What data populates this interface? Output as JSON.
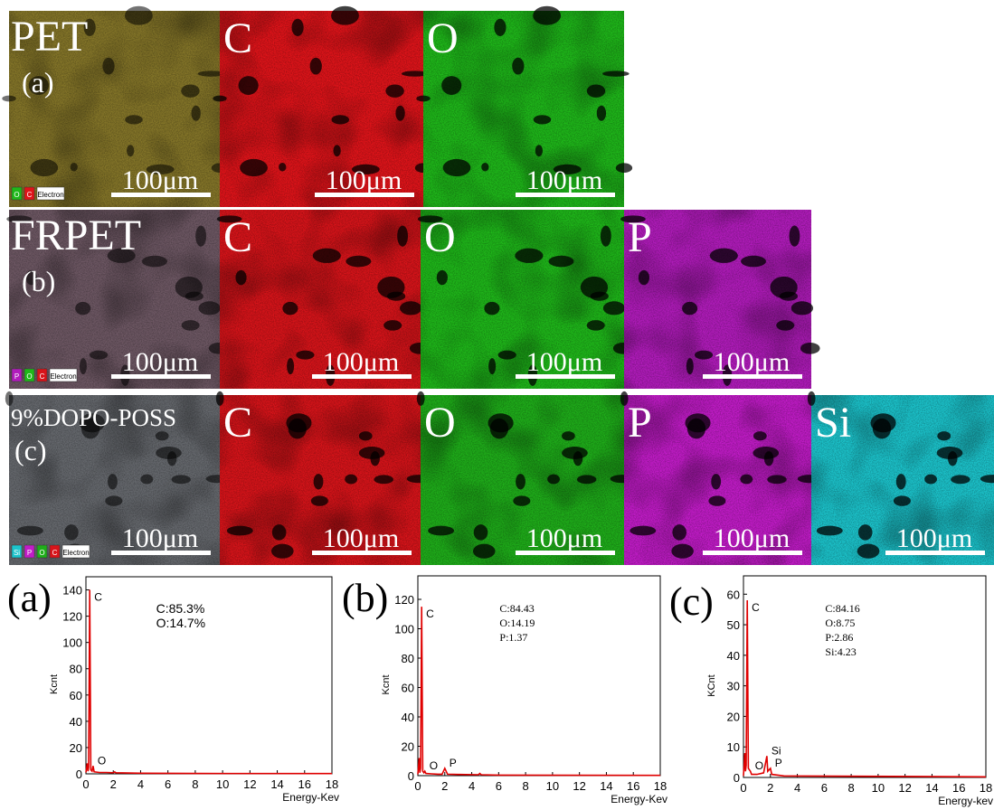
{
  "figure": {
    "rows": [
      {
        "sample": "PET",
        "label": "(a)",
        "color": "#857629",
        "scale_bar": "100μm",
        "legend": [
          "O",
          "C",
          "Electron"
        ],
        "panels": [
          {
            "element": "C",
            "color": "#e0141a"
          },
          {
            "element": "O",
            "color": "#1fb81a"
          }
        ]
      },
      {
        "sample": "FRPET",
        "label": "(b)",
        "color": "#6e5864",
        "scale_bar": "100μm",
        "legend": [
          "P",
          "O",
          "C",
          "Electron"
        ],
        "panels": [
          {
            "element": "C",
            "color": "#d8141a"
          },
          {
            "element": "O",
            "color": "#1fb81a"
          },
          {
            "element": "P",
            "color": "#b21cbc"
          }
        ]
      },
      {
        "sample": "9%DOPO-POSS",
        "label": "(c)",
        "color": "#66696e",
        "scale_bar": "100μm",
        "legend": [
          "Si",
          "P",
          "O",
          "C",
          "Electron"
        ],
        "panels": [
          {
            "element": "C",
            "color": "#d8141a"
          },
          {
            "element": "O",
            "color": "#1fae1a"
          },
          {
            "element": "P",
            "color": "#c21cc8"
          },
          {
            "element": "Si",
            "color": "#1cc4cc"
          }
        ]
      }
    ]
  },
  "chart_data": [
    {
      "type": "line",
      "panel_label": "(a)",
      "ylabel": "Kcnt",
      "xlabel": "Energy-Kev",
      "color": "#e00000",
      "x": [
        0,
        0.1,
        0.15,
        0.2,
        0.28,
        0.36,
        0.45,
        0.52,
        0.6,
        1,
        1.5,
        2,
        2.1,
        2.2,
        4,
        8,
        18
      ],
      "values": [
        1,
        8,
        2,
        5,
        140,
        3,
        2,
        6,
        1.5,
        1,
        1,
        0.8,
        1.5,
        0.8,
        0.5,
        0.3,
        0.2
      ],
      "xlim": [
        0,
        18
      ],
      "ylim": [
        0,
        150
      ],
      "xticks": [
        0,
        2,
        4,
        6,
        8,
        10,
        12,
        14,
        16,
        18
      ],
      "yticks": [
        0,
        20,
        40,
        60,
        80,
        100,
        120,
        140
      ],
      "peaks": [
        {
          "label": "C",
          "x": 0.28,
          "y": 140
        },
        {
          "label": "O",
          "x": 0.52,
          "y": 6
        }
      ],
      "annotations": [
        "C:85.3%",
        "O:14.7%"
      ]
    },
    {
      "type": "line",
      "panel_label": "(b)",
      "ylabel": "Kcnt",
      "xlabel": "Energy-Kev",
      "color": "#e00000",
      "x": [
        0,
        0.1,
        0.15,
        0.2,
        0.28,
        0.36,
        0.45,
        0.52,
        0.6,
        1,
        1.5,
        1.8,
        2.0,
        2.2,
        3,
        4.5,
        4.6,
        4.7,
        6,
        18
      ],
      "values": [
        1,
        12,
        2,
        5,
        115,
        3,
        2,
        3,
        1.5,
        1.2,
        1,
        1,
        5,
        1,
        0.8,
        0.6,
        1.5,
        0.6,
        0.4,
        0.2
      ],
      "xlim": [
        0,
        18
      ],
      "ylim": [
        0,
        136
      ],
      "xticks": [
        0,
        2,
        4,
        6,
        8,
        10,
        12,
        14,
        16,
        18
      ],
      "yticks": [
        0,
        20,
        40,
        60,
        80,
        100,
        120
      ],
      "peaks": [
        {
          "label": "C",
          "x": 0.28,
          "y": 115
        },
        {
          "label": "O",
          "x": 0.52,
          "y": 3
        },
        {
          "label": "P",
          "x": 2.0,
          "y": 5
        }
      ],
      "annotations": [
        "C:84.43",
        "O:14.19",
        "P:1.37"
      ]
    },
    {
      "type": "line",
      "panel_label": "(c)",
      "ylabel": "KCnt",
      "xlabel": "Energy-kev",
      "color": "#e00000",
      "x": [
        0,
        0.1,
        0.15,
        0.2,
        0.28,
        0.36,
        0.52,
        0.6,
        1,
        1.5,
        1.74,
        1.8,
        2.0,
        2.1,
        3,
        18
      ],
      "values": [
        0.5,
        8,
        2,
        4,
        58,
        3,
        2,
        1,
        1,
        1.5,
        7,
        2,
        3,
        1,
        0.5,
        0.2
      ],
      "xlim": [
        0,
        18
      ],
      "ylim": [
        0,
        66
      ],
      "xticks": [
        0,
        2,
        4,
        6,
        8,
        10,
        12,
        14,
        16,
        18
      ],
      "yticks": [
        0,
        10,
        20,
        30,
        40,
        50,
        60
      ],
      "peaks": [
        {
          "label": "C",
          "x": 0.28,
          "y": 58
        },
        {
          "label": "O",
          "x": 0.52,
          "y": 2
        },
        {
          "label": "Si",
          "x": 1.74,
          "y": 7
        },
        {
          "label": "P",
          "x": 2.0,
          "y": 3
        }
      ],
      "annotations": [
        "C:84.16",
        "O:8.75",
        "P:2.86",
        "Si:4.23"
      ]
    }
  ]
}
